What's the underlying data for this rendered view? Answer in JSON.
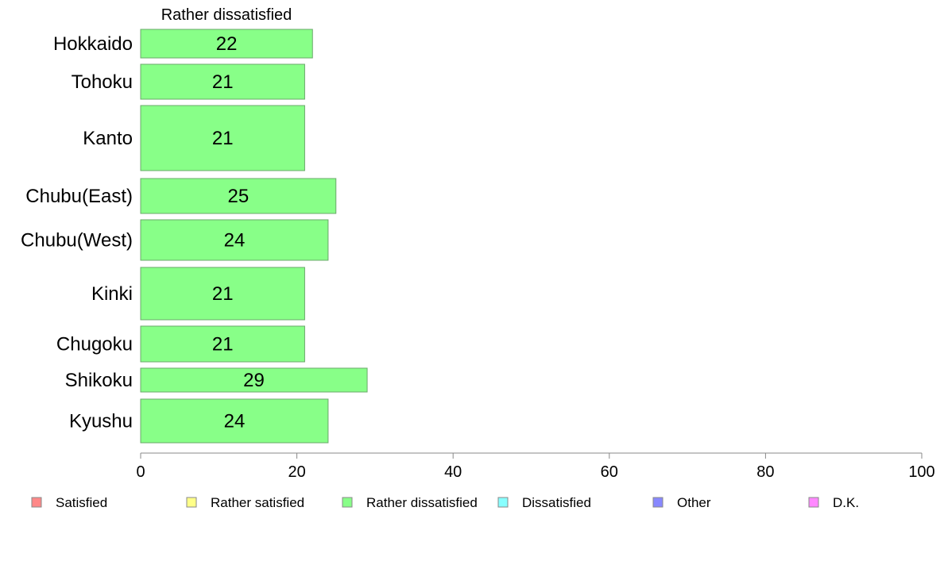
{
  "chart_data": {
    "type": "bar",
    "orientation": "horizontal",
    "series_label": "Rather dissatisfied",
    "categories": [
      "Hokkaido",
      "Tohoku",
      "Kanto",
      "Chubu(East)",
      "Chubu(West)",
      "Kinki",
      "Chugoku",
      "Shikoku",
      "Kyushu"
    ],
    "series": [
      {
        "name": "Rather dissatisfied",
        "values": [
          22,
          21,
          21,
          25,
          24,
          21,
          21,
          29,
          24
        ]
      }
    ],
    "xlim": [
      0,
      100
    ],
    "xticks": [
      0,
      20,
      40,
      60,
      80,
      100
    ],
    "xtick_labels": [
      "0",
      "20",
      "40",
      "60",
      "80",
      "100"
    ],
    "bar_color": "#88ff88",
    "bar_edge_color": "#6aa86a",
    "grid": false,
    "legend_position": "bottom",
    "legend": [
      {
        "label": "Satisfied",
        "color": "#ff8888"
      },
      {
        "label": "Rather satisfied",
        "color": "#ffff88"
      },
      {
        "label": "Rather dissatisfied",
        "color": "#88ff88"
      },
      {
        "label": "Dissatisfied",
        "color": "#88ffff"
      },
      {
        "label": "Other",
        "color": "#8888ff"
      },
      {
        "label": "D.K.",
        "color": "#ff88ff"
      }
    ]
  }
}
